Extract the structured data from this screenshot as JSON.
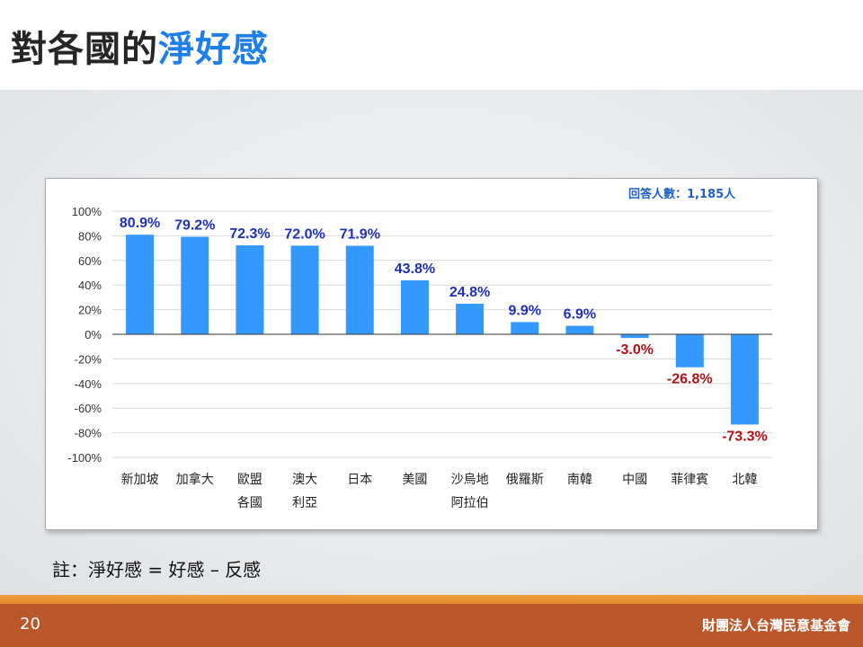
{
  "slide": {
    "title_main": "對各國的",
    "title_highlight": "淨好感",
    "note": "註：淨好感 = 好感 – 反感",
    "page_number": "20",
    "organization": "財團法人台灣民意基金會"
  },
  "chart_data": {
    "type": "bar",
    "title": "",
    "annotation": "回答人數：1,185人",
    "categories": [
      [
        "新加坡"
      ],
      [
        "加拿大"
      ],
      [
        "歐盟",
        "各國"
      ],
      [
        "澳大",
        "利亞"
      ],
      [
        "日本"
      ],
      [
        "美國"
      ],
      [
        "沙烏地",
        "阿拉伯"
      ],
      [
        "俄羅斯"
      ],
      [
        "南韓"
      ],
      [
        "中國"
      ],
      [
        "菲律賓"
      ],
      [
        "北韓"
      ]
    ],
    "values": [
      80.9,
      79.2,
      72.3,
      72.0,
      71.9,
      43.8,
      24.8,
      9.9,
      6.9,
      -3.0,
      -26.8,
      -73.3
    ],
    "data_labels": [
      "80.9%",
      "79.2%",
      "72.3%",
      "72.0%",
      "71.9%",
      "43.8%",
      "24.8%",
      "9.9%",
      "6.9%",
      "-3.0%",
      "-26.8%",
      "-73.3%"
    ],
    "yticks": [
      "100%",
      "80%",
      "60%",
      "40%",
      "20%",
      "0%",
      "-20%",
      "-40%",
      "-60%",
      "-80%",
      "-100%"
    ],
    "ylim": [
      -100,
      100
    ],
    "grid": true,
    "colors": {
      "bar": "#3399ff",
      "positive_label": "#1f31b8",
      "negative_label": "#b01218",
      "annotation": "#1f5fc8",
      "grid": "#d9d9d9",
      "axis_text": "#333333"
    }
  }
}
